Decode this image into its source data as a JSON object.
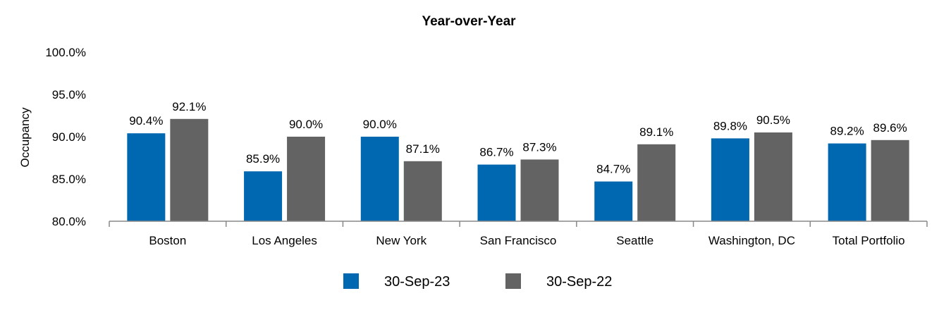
{
  "colors": {
    "series_1": "#0067b1",
    "series_2": "#636363",
    "axis": "#888888"
  },
  "chart_data": {
    "type": "bar",
    "title": "Year-over-Year",
    "ylabel": "Occupancy",
    "xlabel": "",
    "ylim": [
      80.0,
      100.0
    ],
    "yticks": [
      80.0,
      85.0,
      90.0,
      95.0,
      100.0
    ],
    "ytick_labels": [
      "80.0%",
      "85.0%",
      "90.0%",
      "95.0%",
      "100.0%"
    ],
    "grid": false,
    "legend_position": "bottom",
    "categories": [
      "Boston",
      "Los Angeles",
      "New York",
      "San Francisco",
      "Seattle",
      "Washington, DC",
      "Total Portfolio"
    ],
    "series": [
      {
        "name": "30-Sep-23",
        "values": [
          90.4,
          85.9,
          90.0,
          86.7,
          84.7,
          89.8,
          89.2
        ],
        "labels": [
          "90.4%",
          "85.9%",
          "90.0%",
          "86.7%",
          "84.7%",
          "89.8%",
          "89.2%"
        ]
      },
      {
        "name": "30-Sep-22",
        "values": [
          92.1,
          90.0,
          87.1,
          87.3,
          89.1,
          90.5,
          89.6
        ],
        "labels": [
          "92.1%",
          "90.0%",
          "87.1%",
          "87.3%",
          "89.1%",
          "90.5%",
          "89.6%"
        ]
      }
    ]
  }
}
